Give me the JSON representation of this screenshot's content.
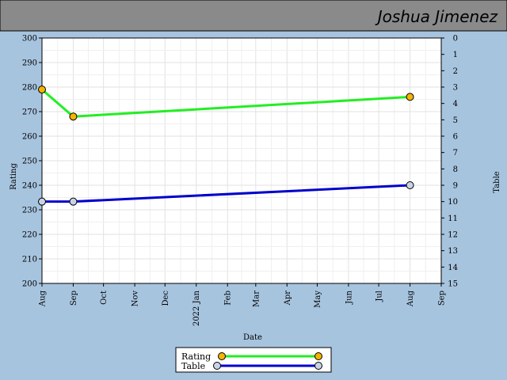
{
  "header": {
    "name": "Joshua Jimenez"
  },
  "chart_data": {
    "type": "line",
    "xlabel": "Date",
    "ylabel_left": "Rating",
    "ylabel_right": "Table",
    "ylim_left": [
      200,
      300
    ],
    "ylim_right": [
      0,
      15
    ],
    "right_axis_inverted": true,
    "y_ticks_left": [
      "200",
      "210",
      "220",
      "230",
      "240",
      "250",
      "260",
      "270",
      "280",
      "290",
      "300"
    ],
    "y_ticks_right": [
      "0",
      "1",
      "2",
      "3",
      "4",
      "5",
      "6",
      "7",
      "8",
      "9",
      "10",
      "11",
      "12",
      "13",
      "14",
      "15"
    ],
    "x_ticks": [
      {
        "date": "2021-08-01",
        "label": "Aug"
      },
      {
        "date": "2021-09-01",
        "label": "Sep"
      },
      {
        "date": "2021-10-01",
        "label": "Oct"
      },
      {
        "date": "2021-11-01",
        "label": "Nov"
      },
      {
        "date": "2021-12-01",
        "label": "Dec"
      },
      {
        "date": "2022-01-01",
        "label": "2022 Jan"
      },
      {
        "date": "2022-02-01",
        "label": "Feb"
      },
      {
        "date": "2022-03-01",
        "label": "Mar"
      },
      {
        "date": "2022-04-01",
        "label": "Apr"
      },
      {
        "date": "2022-05-01",
        "label": "May"
      },
      {
        "date": "2022-06-01",
        "label": "Jun"
      },
      {
        "date": "2022-07-01",
        "label": "Jul"
      },
      {
        "date": "2022-08-01",
        "label": "Aug"
      },
      {
        "date": "2022-09-01",
        "label": "Sep"
      }
    ],
    "xlim": [
      "2021-08-01",
      "2022-09-01"
    ],
    "grid": true,
    "legend_position": "bottom-center",
    "series": [
      {
        "name": "Rating",
        "axis": "left",
        "color": "#22ee22",
        "marker_color": "#f5b400",
        "points": [
          {
            "x": "2021-08-01",
            "y": 279
          },
          {
            "x": "2021-09-01",
            "y": 268
          },
          {
            "x": "2022-08-01",
            "y": 276
          }
        ]
      },
      {
        "name": "Table",
        "axis": "right",
        "color": "#0000cc",
        "marker_color": "#c8d4e6",
        "points": [
          {
            "x": "2021-08-01",
            "y": 10
          },
          {
            "x": "2021-09-01",
            "y": 10
          },
          {
            "x": "2022-08-01",
            "y": 9
          }
        ]
      }
    ]
  }
}
